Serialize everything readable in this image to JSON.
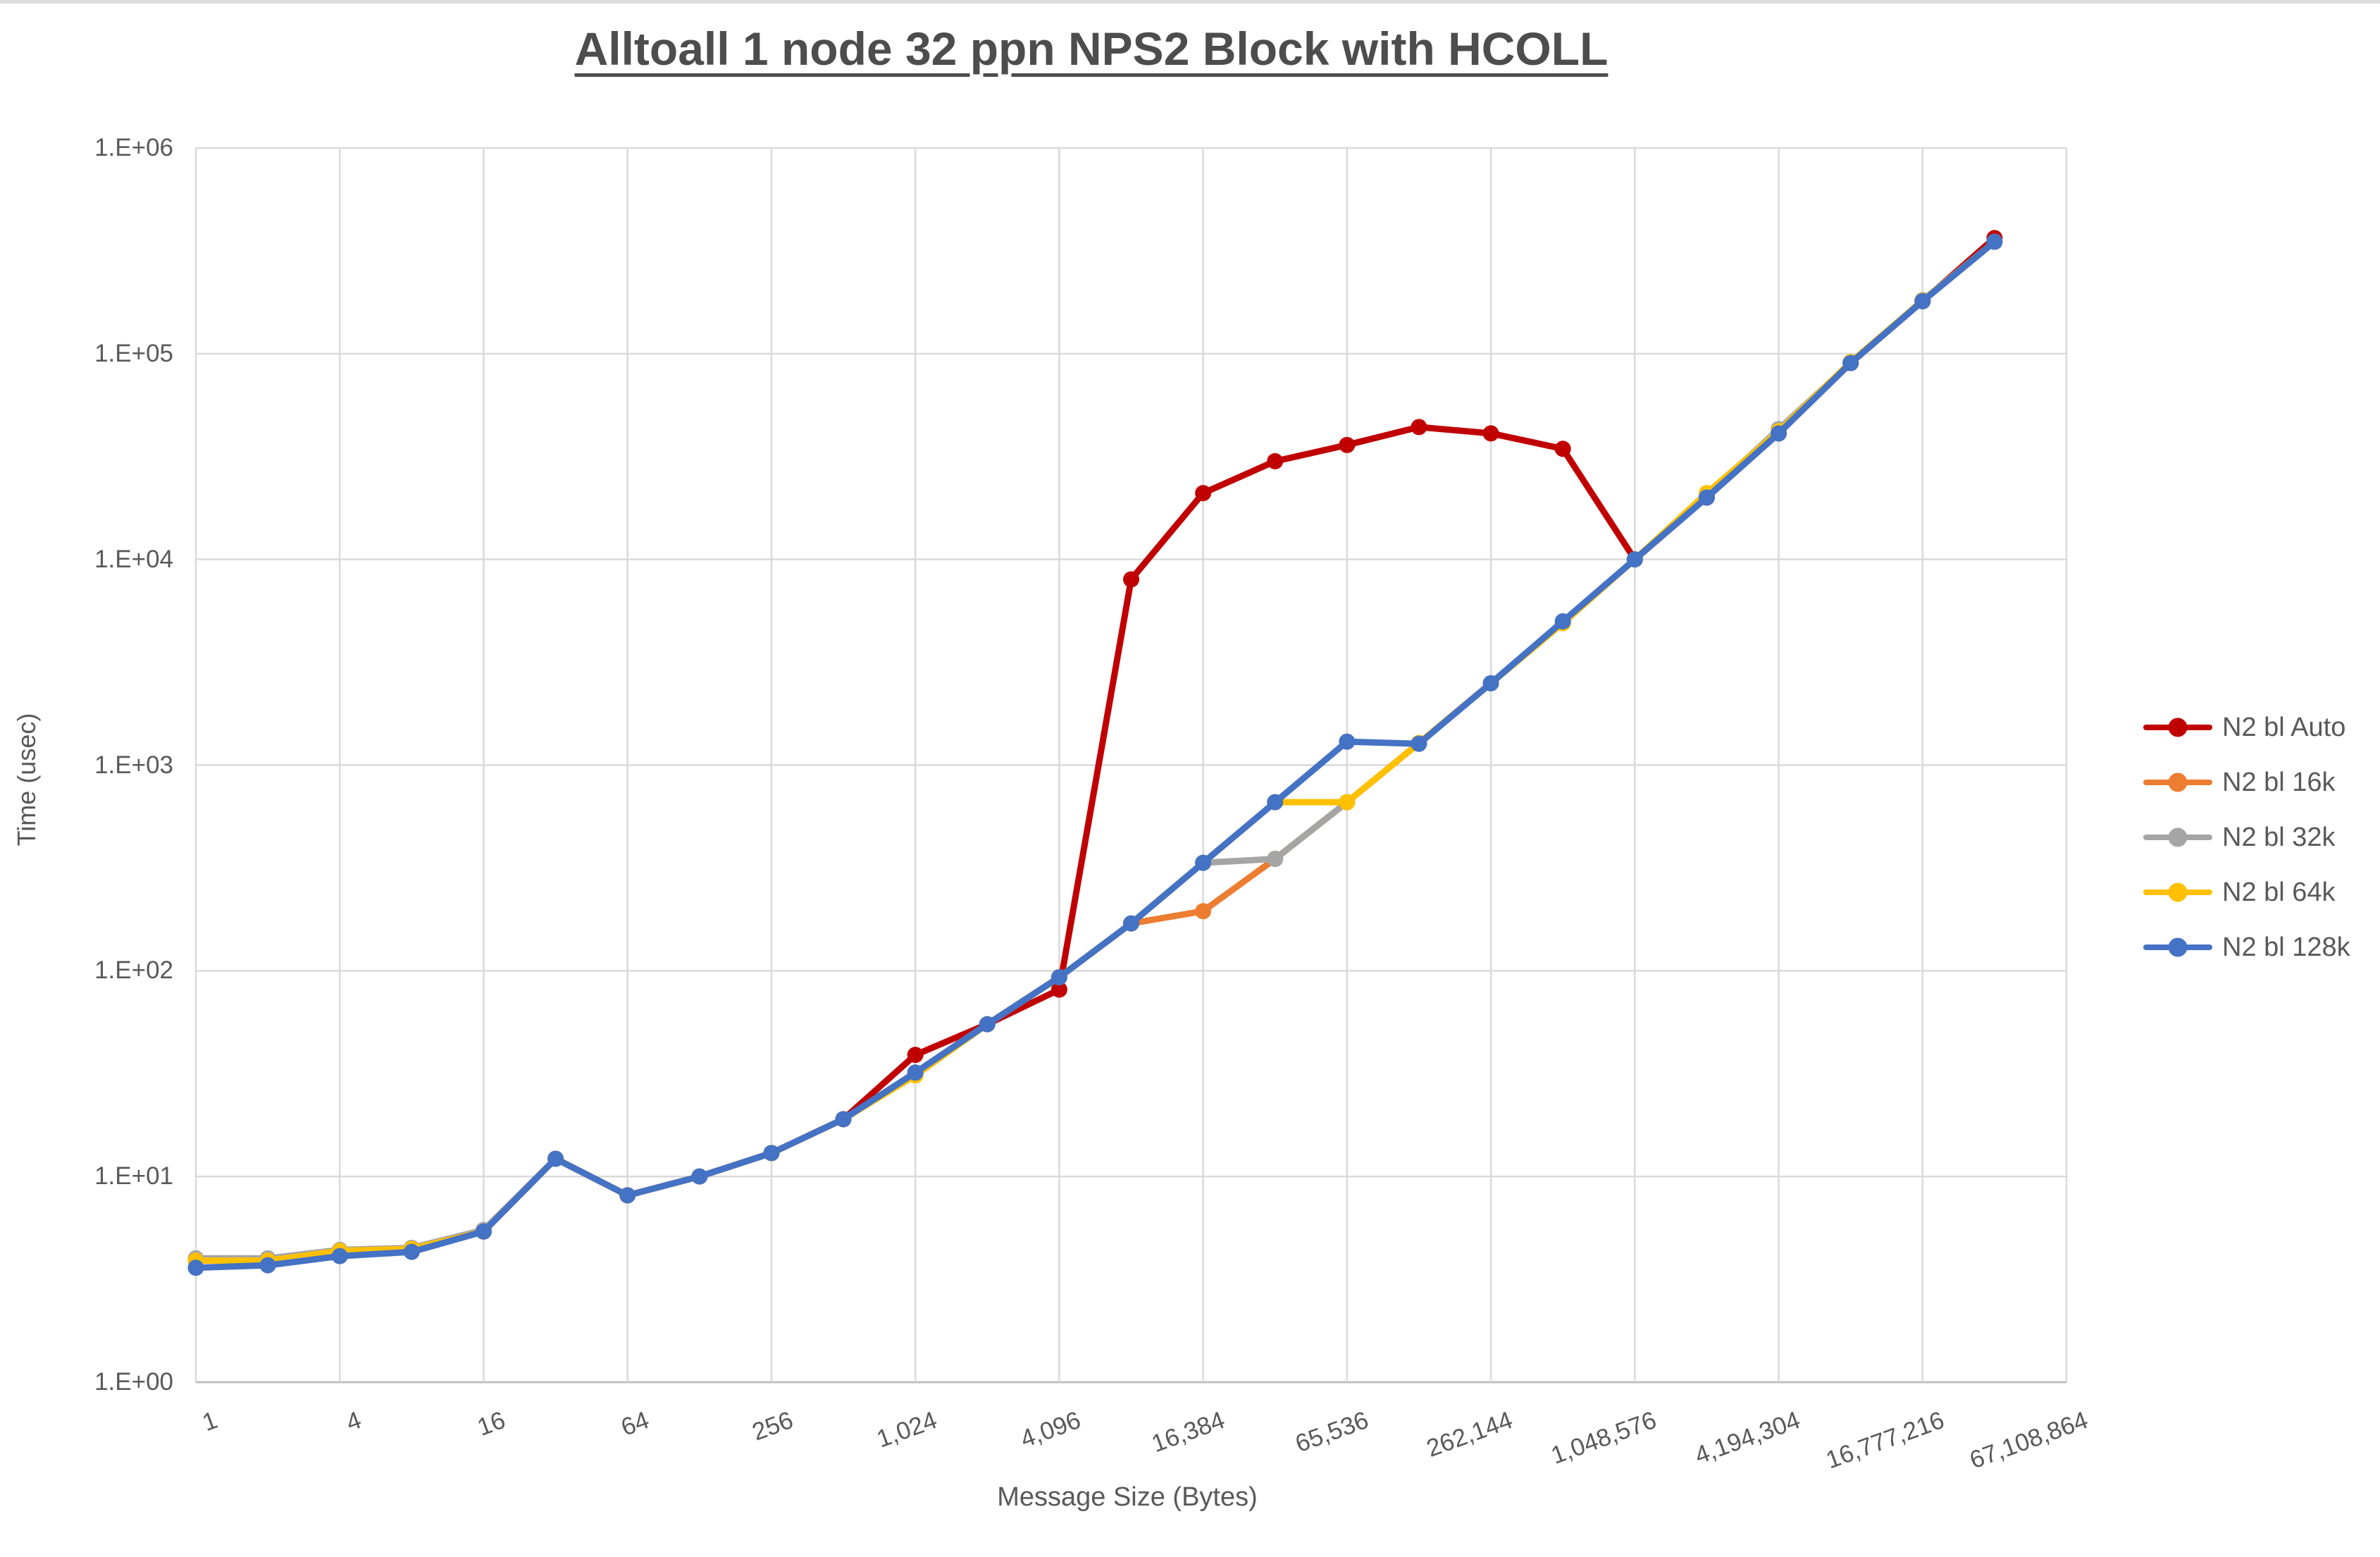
{
  "title": "Alltoall 1 node 32 ppn NPS2 Block with HCOLL",
  "chart_data": {
    "type": "line",
    "title": "Alltoall 1 node 32 ppn NPS2 Block with HCOLL",
    "xlabel": "Message Size (Bytes)",
    "ylabel": "Time (usec)",
    "x_scale": "log2-categorical",
    "y_scale": "log10",
    "ylim": [
      1,
      1000000
    ],
    "grid": true,
    "legend_position": "right",
    "y_tick_labels": [
      "1.E+06",
      "1.E+05",
      "1.E+04",
      "1.E+03",
      "1.E+02",
      "1.E+01",
      "1.E+00"
    ],
    "x_tick_labels": [
      "1",
      "4",
      "16",
      "64",
      "256",
      "1,024",
      "4,096",
      "16,384",
      "65,536",
      "262,144",
      "1,048,576",
      "4,194,304",
      "16,777,216",
      "67,108,864"
    ],
    "categories": [
      1,
      2,
      4,
      8,
      16,
      32,
      64,
      128,
      256,
      512,
      1024,
      2048,
      4096,
      8192,
      16384,
      32768,
      65536,
      131072,
      262144,
      524288,
      1048576,
      2097152,
      4194304,
      8388608,
      16777216,
      33554432
    ],
    "series": [
      {
        "name": "N2 bl Auto",
        "color": "#C00000",
        "values": [
          3.9,
          3.9,
          4.3,
          4.4,
          5.4,
          12.2,
          8.1,
          10,
          13,
          19,
          39,
          55,
          81,
          8000,
          21000,
          30000,
          36000,
          44000,
          41000,
          34500,
          10000,
          20000,
          41000,
          90000,
          180000,
          365000
        ]
      },
      {
        "name": "N2 bl 16k",
        "color": "#ED7D31",
        "values": [
          3.9,
          3.9,
          4.3,
          4.4,
          5.4,
          12.2,
          8.1,
          10,
          13,
          19,
          32,
          55,
          93,
          170,
          195,
          350,
          660,
          1280,
          2500,
          4900,
          10000,
          20500,
          41500,
          90000,
          180000,
          350000
        ]
      },
      {
        "name": "N2 bl 32k",
        "color": "#A5A5A5",
        "values": [
          4.0,
          4.0,
          4.4,
          4.5,
          5.5,
          12.2,
          8.1,
          10,
          13,
          19,
          32,
          55,
          93,
          170,
          335,
          350,
          660,
          1280,
          2500,
          4900,
          10000,
          20500,
          43000,
          90000,
          182000,
          350000
        ]
      },
      {
        "name": "N2 bl 64k",
        "color": "#FFC000",
        "values": [
          3.9,
          3.9,
          4.35,
          4.45,
          5.4,
          12.2,
          8.1,
          10,
          13,
          19,
          31,
          55,
          93,
          170,
          335,
          660,
          660,
          1280,
          2500,
          4900,
          10000,
          21000,
          42000,
          91000,
          181000,
          350000
        ]
      },
      {
        "name": "N2 bl 128k",
        "color": "#4472C4",
        "values": [
          3.6,
          3.7,
          4.1,
          4.3,
          5.4,
          12.2,
          8.1,
          10,
          13,
          19,
          32,
          55,
          93,
          170,
          335,
          660,
          1300,
          1270,
          2500,
          5000,
          10000,
          20000,
          41000,
          90000,
          180000,
          350000
        ]
      }
    ],
    "layout": {
      "plot_left": 278,
      "plot_top": 205,
      "plot_right": 2933,
      "plot_bottom": 1956,
      "slots": 27,
      "decades": 6,
      "gridline_color": "#D9D9D9",
      "axis_line_color": "#BFBFBF",
      "text_color": "#595959"
    }
  },
  "axis_titles": {
    "y": "Time (usec)",
    "x": "Message Size (Bytes)"
  }
}
